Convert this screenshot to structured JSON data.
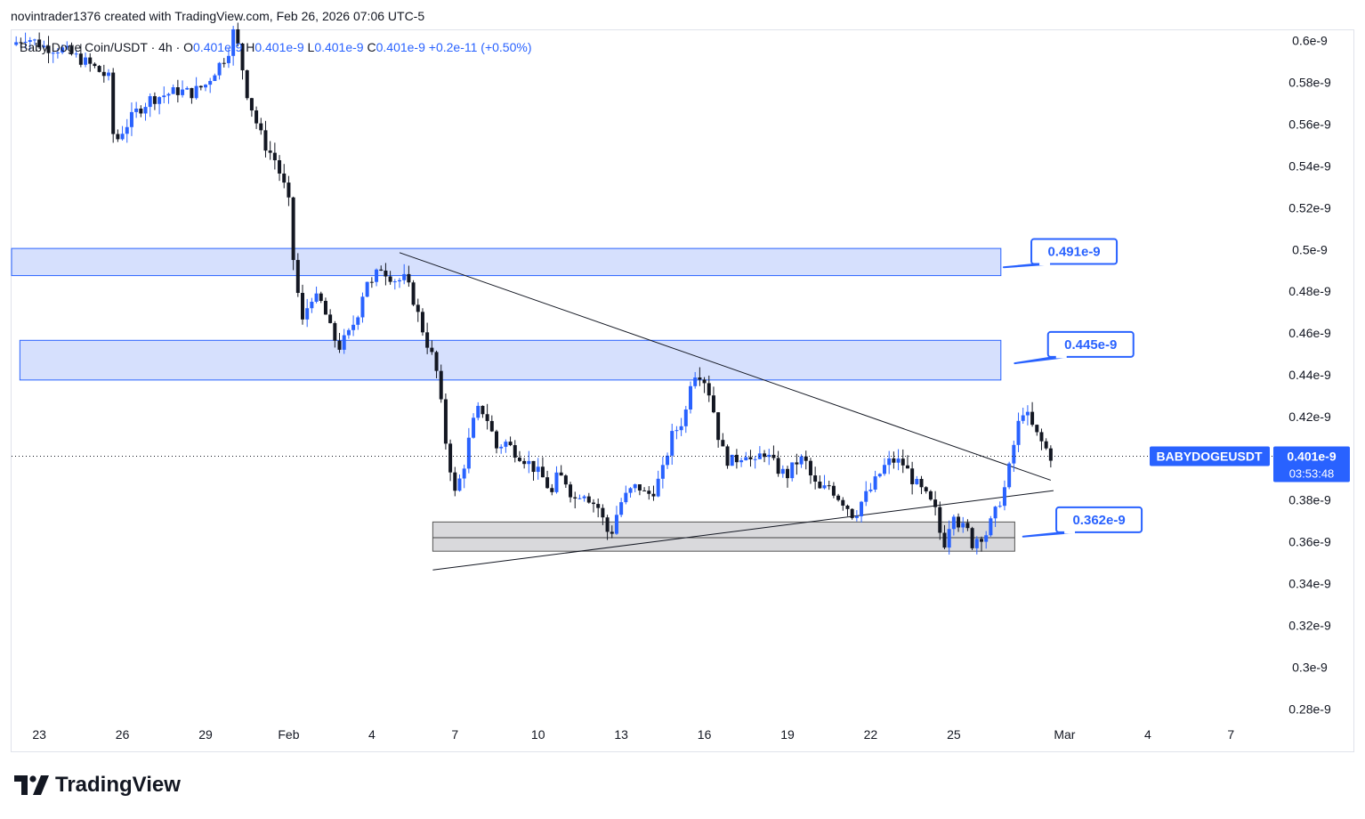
{
  "credit": "novintrader1376 created with TradingView.com, Feb 26, 2026 07:06 UTC-5",
  "brand": "TradingView",
  "legend": {
    "symbol": "Baby Doge Coin/USDT · 4h · ",
    "o_label": "O",
    "o": "0.401e-9",
    "h_label": "H",
    "h": "0.401e-9",
    "l_label": "L",
    "l": "0.401e-9",
    "c_label": "C",
    "c": "0.401e-9",
    "change": "+0.2e-11 (+0.50%)"
  },
  "colors": {
    "up": "#2962ff",
    "down": "#131722",
    "zone_blue": "#d6e0fd",
    "zone_blue_border": "#2962ff",
    "zone_gray": "#d9d9dc",
    "callout": "#2962ff"
  },
  "chart_data": {
    "type": "candlestick",
    "timeframe": "4h",
    "y_axis": {
      "ticks": [
        "0.6e-9",
        "0.58e-9",
        "0.56e-9",
        "0.54e-9",
        "0.52e-9",
        "0.5e-9",
        "0.48e-9",
        "0.46e-9",
        "0.44e-9",
        "0.42e-9",
        "0.38e-9",
        "0.36e-9",
        "0.34e-9",
        "0.32e-9",
        "0.3e-9",
        "0.28e-9"
      ],
      "tick_values": [
        0.6,
        0.58,
        0.56,
        0.54,
        0.52,
        0.5,
        0.48,
        0.46,
        0.44,
        0.42,
        0.38,
        0.36,
        0.34,
        0.32,
        0.3,
        0.28
      ],
      "ylim": [
        0.275,
        0.605
      ]
    },
    "x_axis": {
      "ticks": [
        "23",
        "26",
        "29",
        "Feb",
        "4",
        "7",
        "10",
        "13",
        "16",
        "19",
        "22",
        "25",
        "Mar",
        "4",
        "7"
      ],
      "tick_days": [
        0,
        3,
        6,
        9,
        12,
        15,
        18,
        21,
        24,
        27,
        30,
        33,
        37,
        40,
        43
      ],
      "xlim": [
        -1,
        44.5
      ]
    },
    "close_path": [
      [
        -1.0,
        0.598
      ],
      [
        -0.5,
        0.602
      ],
      [
        0.2,
        0.597
      ],
      [
        0.8,
        0.596
      ],
      [
        1.5,
        0.591
      ],
      [
        2.0,
        0.587
      ],
      [
        2.5,
        0.582
      ],
      [
        2.7,
        0.55
      ],
      [
        3.0,
        0.557
      ],
      [
        3.5,
        0.566
      ],
      [
        4.0,
        0.572
      ],
      [
        4.5,
        0.574
      ],
      [
        5.0,
        0.576
      ],
      [
        5.5,
        0.575
      ],
      [
        6.0,
        0.579
      ],
      [
        6.3,
        0.585
      ],
      [
        6.8,
        0.594
      ],
      [
        7.0,
        0.604
      ],
      [
        7.2,
        0.596
      ],
      [
        7.5,
        0.575
      ],
      [
        7.8,
        0.562
      ],
      [
        8.1,
        0.551
      ],
      [
        8.5,
        0.543
      ],
      [
        8.8,
        0.532
      ],
      [
        9.0,
        0.522
      ],
      [
        9.2,
        0.49
      ],
      [
        9.5,
        0.465
      ],
      [
        9.8,
        0.478
      ],
      [
        10.2,
        0.474
      ],
      [
        10.5,
        0.462
      ],
      [
        10.8,
        0.453
      ],
      [
        11.2,
        0.46
      ],
      [
        11.5,
        0.47
      ],
      [
        11.8,
        0.486
      ],
      [
        12.0,
        0.483
      ],
      [
        12.3,
        0.492
      ],
      [
        12.6,
        0.488
      ],
      [
        12.9,
        0.485
      ],
      [
        13.2,
        0.486
      ],
      [
        13.5,
        0.476
      ],
      [
        13.8,
        0.463
      ],
      [
        14.0,
        0.455
      ],
      [
        14.2,
        0.448
      ],
      [
        14.4,
        0.438
      ],
      [
        14.6,
        0.413
      ],
      [
        14.8,
        0.398
      ],
      [
        15.0,
        0.383
      ],
      [
        15.3,
        0.395
      ],
      [
        15.6,
        0.415
      ],
      [
        15.9,
        0.425
      ],
      [
        16.2,
        0.418
      ],
      [
        16.5,
        0.405
      ],
      [
        16.8,
        0.408
      ],
      [
        17.1,
        0.404
      ],
      [
        17.4,
        0.401
      ],
      [
        17.8,
        0.396
      ],
      [
        18.2,
        0.39
      ],
      [
        18.5,
        0.383
      ],
      [
        18.7,
        0.392
      ],
      [
        19.0,
        0.389
      ],
      [
        19.3,
        0.38
      ],
      [
        19.6,
        0.385
      ],
      [
        19.9,
        0.38
      ],
      [
        20.2,
        0.376
      ],
      [
        20.4,
        0.368
      ],
      [
        20.6,
        0.362
      ],
      [
        20.8,
        0.372
      ],
      [
        21.0,
        0.379
      ],
      [
        21.3,
        0.384
      ],
      [
        21.6,
        0.387
      ],
      [
        21.9,
        0.382
      ],
      [
        22.2,
        0.385
      ],
      [
        22.5,
        0.394
      ],
      [
        22.8,
        0.41
      ],
      [
        23.1,
        0.416
      ],
      [
        23.3,
        0.42
      ],
      [
        23.5,
        0.437
      ],
      [
        23.7,
        0.442
      ],
      [
        23.9,
        0.44
      ],
      [
        24.1,
        0.435
      ],
      [
        24.3,
        0.425
      ],
      [
        24.5,
        0.411
      ],
      [
        24.7,
        0.402
      ],
      [
        24.9,
        0.398
      ],
      [
        25.2,
        0.4
      ],
      [
        25.5,
        0.403
      ],
      [
        25.8,
        0.396
      ],
      [
        26.1,
        0.404
      ],
      [
        26.4,
        0.399
      ],
      [
        26.7,
        0.394
      ],
      [
        27.0,
        0.392
      ],
      [
        27.3,
        0.398
      ],
      [
        27.6,
        0.4
      ],
      [
        27.9,
        0.389
      ],
      [
        28.2,
        0.384
      ],
      [
        28.5,
        0.387
      ],
      [
        28.8,
        0.382
      ],
      [
        29.1,
        0.378
      ],
      [
        29.4,
        0.372
      ],
      [
        29.7,
        0.38
      ],
      [
        30.0,
        0.385
      ],
      [
        30.3,
        0.392
      ],
      [
        30.6,
        0.398
      ],
      [
        30.9,
        0.399
      ],
      [
        31.2,
        0.397
      ],
      [
        31.5,
        0.39
      ],
      [
        31.8,
        0.385
      ],
      [
        32.1,
        0.38
      ],
      [
        32.4,
        0.373
      ],
      [
        32.6,
        0.356
      ],
      [
        32.8,
        0.367
      ],
      [
        33.0,
        0.375
      ],
      [
        33.2,
        0.368
      ],
      [
        33.5,
        0.365
      ],
      [
        33.7,
        0.358
      ],
      [
        33.9,
        0.364
      ],
      [
        34.1,
        0.362
      ],
      [
        34.3,
        0.368
      ],
      [
        34.5,
        0.374
      ],
      [
        34.7,
        0.381
      ],
      [
        34.9,
        0.388
      ],
      [
        35.1,
        0.402
      ],
      [
        35.3,
        0.415
      ],
      [
        35.5,
        0.423
      ],
      [
        35.7,
        0.419
      ],
      [
        35.9,
        0.413
      ],
      [
        36.1,
        0.409
      ],
      [
        36.3,
        0.405
      ],
      [
        36.5,
        0.401
      ]
    ],
    "zones": [
      {
        "x0": -1.0,
        "x1": 34.7,
        "y0": 0.4875,
        "y1": 0.5005
      },
      {
        "x0": -0.7,
        "x1": 34.7,
        "y0": 0.4375,
        "y1": 0.4565
      },
      {
        "x0": 14.2,
        "x1": 35.2,
        "y0": 0.3555,
        "y1": 0.3695,
        "mid": 0.362,
        "gray": true
      }
    ],
    "trendlines": [
      {
        "x0": 13.0,
        "y0": 0.4985,
        "x1": 36.5,
        "y1": 0.3895
      },
      {
        "x0": 14.2,
        "y0": 0.3465,
        "x1": 36.6,
        "y1": 0.3845
      }
    ],
    "callouts": [
      {
        "label": "0.491e-9",
        "value": 0.491,
        "box_day": 35.8,
        "box_price": 0.505,
        "tip_day": 34.8,
        "tip_price": 0.4915
      },
      {
        "label": "0.445e-9",
        "value": 0.445,
        "box_day": 36.4,
        "box_price": 0.4605,
        "tip_day": 35.2,
        "tip_price": 0.4455
      },
      {
        "label": "0.362e-9",
        "value": 0.362,
        "box_day": 36.7,
        "box_price": 0.3765,
        "tip_day": 35.5,
        "tip_price": 0.3625
      }
    ],
    "current": {
      "symbol": "BABYDOGEUSDT",
      "price": "0.401e-9",
      "value": 0.401,
      "countdown": "03:53:48"
    }
  }
}
